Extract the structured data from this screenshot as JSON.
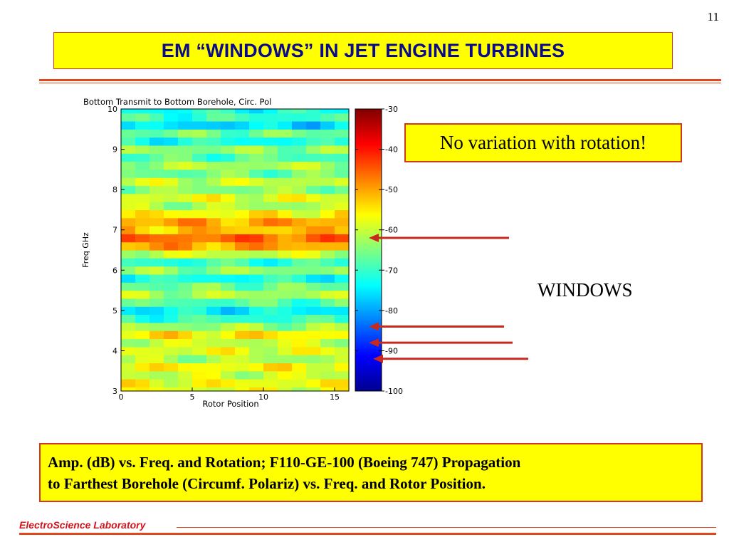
{
  "slide": {
    "page_number": "11",
    "title": "EM “WINDOWS” IN JET ENGINE TURBINES",
    "callout": "No variation with rotation!",
    "windows_label": "WINDOWS",
    "caption_line1": "Amp. (dB) vs. Freq. and Rotation; F110-GE-100 (Boeing 747) Propagation",
    "caption_line2": "to Farthest Borehole (Circumf. Polariz) vs. Freq. and Rotor Position.",
    "footer": "ElectroScience Laboratory",
    "accent_color": "#d2141e",
    "highlight_color": "#ffff00",
    "title_color": "#0a0a8c"
  },
  "chart_data": {
    "type": "heatmap",
    "title": "Bottom Transmit to Bottom Borehole, Circ. Pol",
    "xlabel": "Rotor Position",
    "ylabel": "Freq GHz",
    "xlim": [
      0,
      16
    ],
    "ylim": [
      3,
      10
    ],
    "x_ticks": [
      "0",
      "5",
      "10",
      "15"
    ],
    "y_ticks": [
      "3",
      "4",
      "5",
      "6",
      "7",
      "8",
      "9",
      "10"
    ],
    "colorbar": {
      "range": [
        -100,
        -30
      ],
      "ticks": [
        "-30",
        "-40",
        "-50",
        "-60",
        "-70",
        "-80",
        "-90",
        "-100"
      ],
      "colormap": "jet"
    },
    "frequency_profile_dB": [
      {
        "freq": 3.0,
        "amp": -58
      },
      {
        "freq": 3.2,
        "amp": -57
      },
      {
        "freq": 3.4,
        "amp": -60
      },
      {
        "freq": 3.6,
        "amp": -56
      },
      {
        "freq": 3.8,
        "amp": -62
      },
      {
        "freq": 4.0,
        "amp": -58
      },
      {
        "freq": 4.2,
        "amp": -60
      },
      {
        "freq": 4.4,
        "amp": -55
      },
      {
        "freq": 4.6,
        "amp": -63
      },
      {
        "freq": 4.8,
        "amp": -70
      },
      {
        "freq": 5.0,
        "amp": -74
      },
      {
        "freq": 5.2,
        "amp": -68
      },
      {
        "freq": 5.4,
        "amp": -62
      },
      {
        "freq": 5.6,
        "amp": -66
      },
      {
        "freq": 5.8,
        "amp": -72
      },
      {
        "freq": 6.0,
        "amp": -64
      },
      {
        "freq": 6.2,
        "amp": -70
      },
      {
        "freq": 6.4,
        "amp": -60
      },
      {
        "freq": 6.6,
        "amp": -50
      },
      {
        "freq": 6.8,
        "amp": -46
      },
      {
        "freq": 7.0,
        "amp": -52
      },
      {
        "freq": 7.2,
        "amp": -50
      },
      {
        "freq": 7.4,
        "amp": -56
      },
      {
        "freq": 7.6,
        "amp": -62
      },
      {
        "freq": 7.8,
        "amp": -58
      },
      {
        "freq": 8.0,
        "amp": -64
      },
      {
        "freq": 8.2,
        "amp": -60
      },
      {
        "freq": 8.4,
        "amp": -66
      },
      {
        "freq": 8.6,
        "amp": -62
      },
      {
        "freq": 8.8,
        "amp": -68
      },
      {
        "freq": 9.0,
        "amp": -64
      },
      {
        "freq": 9.2,
        "amp": -72
      },
      {
        "freq": 9.4,
        "amp": -66
      },
      {
        "freq": 9.6,
        "amp": -76
      },
      {
        "freq": 9.8,
        "amp": -70
      },
      {
        "freq": 10.0,
        "amp": -72
      }
    ],
    "annotated_windows_dB": [
      -62,
      -84,
      -88,
      -92
    ]
  }
}
